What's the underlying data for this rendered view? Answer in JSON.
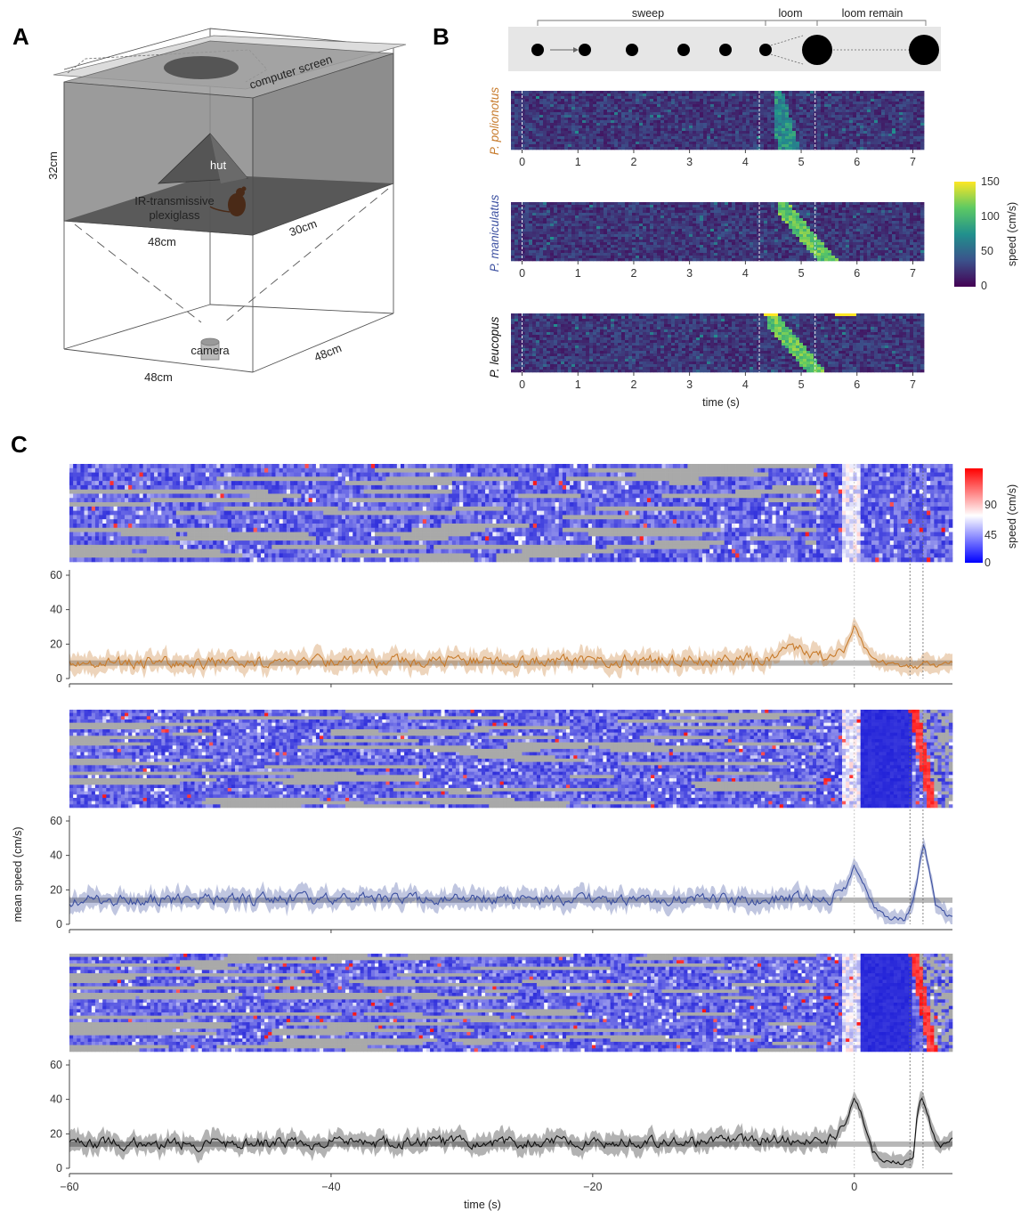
{
  "panels": {
    "a": "A",
    "b": "B",
    "c": "C"
  },
  "diagram": {
    "screen_label": "computer screen",
    "hut_label": "hut",
    "plexiglass_label_1": "IR-transmissive",
    "plexiglass_label_2": "plexiglass",
    "camera_label": "camera",
    "dim_height": "32cm",
    "dim_top_width": "48cm",
    "dim_top_depth": "30cm",
    "dim_bottom_width": "48cm",
    "dim_bottom_depth": "48cm"
  },
  "stimulus": {
    "sweep_label": "sweep",
    "loom_label": "loom",
    "loom_remain_label": "loom remain"
  },
  "panel_b": {
    "species": [
      {
        "name": "P. polionotus",
        "color": "#c77a2a"
      },
      {
        "name": "P. maniculatus",
        "color": "#3b4fa0"
      },
      {
        "name": "P. leucopus",
        "color": "#111111"
      }
    ],
    "xticks": [
      "0",
      "1",
      "2",
      "3",
      "4",
      "5",
      "6",
      "7"
    ],
    "xlabel": "time (s)",
    "colorbar": {
      "label": "speed (cm/s)",
      "ticks": [
        "150",
        "100",
        "50",
        "0"
      ],
      "palette": "viridis"
    }
  },
  "panel_c": {
    "colorbar": {
      "label": "speed (cm/s)",
      "ticks": [
        "90",
        "45",
        "0"
      ],
      "palette": "blue-white-red"
    },
    "yticks": [
      "60",
      "40",
      "20",
      "0"
    ],
    "ylabel": "mean speed (cm/s)",
    "xticks": [
      "−60",
      "−40",
      "−20",
      "0"
    ],
    "xlabel": "time (s)"
  },
  "chart_data": [
    {
      "type": "heatmap",
      "species": "P. polionotus",
      "x_range": [
        -0.2,
        7.2
      ],
      "stimulus_onsets": [
        0,
        4.25,
        5.25
      ],
      "peak_speed_window": [
        4.5,
        5.1
      ],
      "value_range": [
        0,
        150
      ]
    },
    {
      "type": "heatmap",
      "species": "P. maniculatus",
      "x_range": [
        -0.2,
        7.2
      ],
      "stimulus_onsets": [
        0,
        4.25,
        5.25
      ],
      "peak_speed_window": [
        4.6,
        5.8
      ],
      "value_range": [
        0,
        150
      ]
    },
    {
      "type": "heatmap",
      "species": "P. leucopus",
      "x_range": [
        -0.2,
        7.2
      ],
      "stimulus_onsets": [
        0,
        4.25,
        5.25
      ],
      "peak_speed_window": [
        4.4,
        5.6
      ],
      "value_range": [
        0,
        150
      ]
    },
    {
      "type": "line",
      "species": "P. polionotus",
      "color": "#c77a2a",
      "xlim": [
        -60,
        7.5
      ],
      "ylim": [
        0,
        60
      ],
      "baseline": 9,
      "keypoints": [
        [
          -60,
          9
        ],
        [
          -6,
          11
        ],
        [
          -5,
          20
        ],
        [
          -2,
          12
        ],
        [
          -0.8,
          16
        ],
        [
          0,
          31
        ],
        [
          0.6,
          22
        ],
        [
          1.2,
          12
        ],
        [
          3,
          8
        ],
        [
          4.8,
          6
        ],
        [
          5.5,
          10
        ],
        [
          6.3,
          7
        ],
        [
          7.5,
          10
        ]
      ],
      "markers": [
        0,
        4.25,
        5.25
      ]
    },
    {
      "type": "line",
      "species": "P. maniculatus",
      "color": "#3b4fa0",
      "xlim": [
        -60,
        7.5
      ],
      "ylim": [
        0,
        60
      ],
      "baseline": 14,
      "keypoints": [
        [
          -60,
          14
        ],
        [
          -2,
          15
        ],
        [
          -0.6,
          22
        ],
        [
          0,
          35
        ],
        [
          0.6,
          25
        ],
        [
          1.5,
          10
        ],
        [
          2.5,
          4
        ],
        [
          3.8,
          3
        ],
        [
          4.5,
          12
        ],
        [
          5.0,
          35
        ],
        [
          5.3,
          47
        ],
        [
          5.7,
          32
        ],
        [
          6.2,
          12
        ],
        [
          7.0,
          6
        ],
        [
          7.5,
          5
        ]
      ],
      "markers": [
        0,
        4.25,
        5.25
      ]
    },
    {
      "type": "line",
      "species": "P. leucopus",
      "color": "#111111",
      "xlim": [
        -60,
        7.5
      ],
      "ylim": [
        0,
        60
      ],
      "baseline": 14,
      "keypoints": [
        [
          -60,
          14
        ],
        [
          -2,
          16
        ],
        [
          -0.6,
          25
        ],
        [
          0,
          42
        ],
        [
          0.6,
          30
        ],
        [
          1.4,
          10
        ],
        [
          2.3,
          4
        ],
        [
          3.5,
          3
        ],
        [
          4.5,
          7
        ],
        [
          4.8,
          30
        ],
        [
          5.1,
          43
        ],
        [
          5.5,
          35
        ],
        [
          6.0,
          20
        ],
        [
          6.5,
          12
        ],
        [
          7.5,
          16
        ]
      ],
      "markers": [
        0,
        4.25,
        5.25
      ]
    }
  ]
}
